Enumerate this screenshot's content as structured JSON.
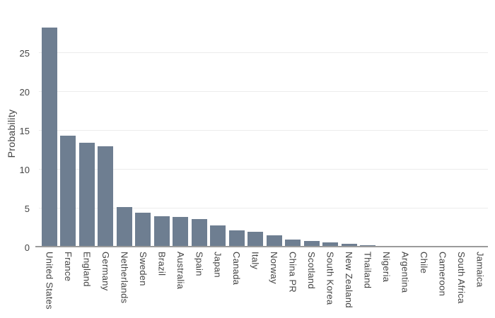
{
  "chart_data": {
    "type": "bar",
    "title": "",
    "xlabel": "",
    "ylabel": "Probability",
    "legend": "none",
    "grid": true,
    "categories": [
      "United States",
      "France",
      "England",
      "Germany",
      "Netherlands",
      "Sweden",
      "Brazil",
      "Australia",
      "Spain",
      "Japan",
      "Canada",
      "Italy",
      "Norway",
      "China PR",
      "Scotland",
      "South Korea",
      "New Zealand",
      "Thailand",
      "Nigeria",
      "Argentina",
      "Chile",
      "Cameroon",
      "South Africa",
      "Jamaica"
    ],
    "values": [
      28.1,
      14.2,
      13.3,
      12.8,
      5.0,
      4.3,
      3.8,
      3.7,
      3.5,
      2.6,
      2.0,
      1.8,
      1.4,
      0.8,
      0.6,
      0.5,
      0.3,
      0.1,
      0,
      0,
      0,
      0,
      0,
      0
    ],
    "yticks": [
      0,
      5,
      10,
      15,
      20,
      25
    ],
    "ylim": [
      0,
      29.1
    ],
    "colors": {
      "bar": "#6e7e91",
      "grid": "#ececec",
      "axis_line": "#9b9b9b",
      "text": "#444444",
      "background": "#ffffff"
    }
  }
}
